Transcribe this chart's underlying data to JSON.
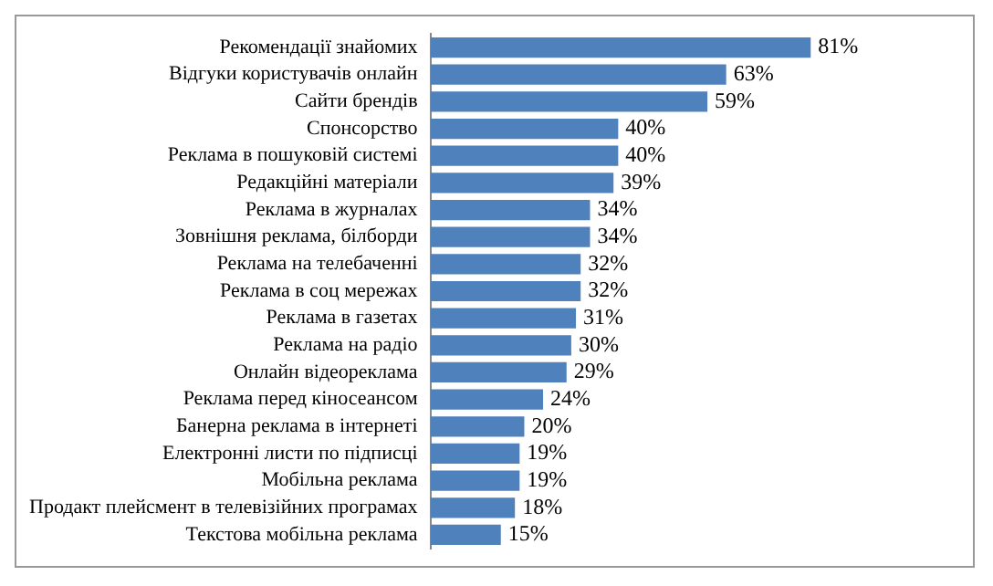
{
  "chart_data": {
    "type": "bar",
    "orientation": "horizontal",
    "categories": [
      "Рекомендації знайомих",
      "Відгуки користувачів онлайн",
      "Сайти брендів",
      "Спонсорство",
      "Реклама в пошуковій системі",
      "Редакційні матеріали",
      "Реклама в журналах",
      "Зовнішня реклама, білборди",
      "Реклама на телебаченні",
      "Реклама в соц мережах",
      "Реклама в газетах",
      "Реклама на радіо",
      "Онлайн відеореклама",
      "Реклама перед кіносеансом",
      "Банерна реклама в інтернеті",
      "Електронні листи по підписці",
      "Мобільна реклама",
      "Продакт плейсмент в телевізійних програмах",
      "Текстова мобільна реклама"
    ],
    "values": [
      81,
      63,
      59,
      40,
      40,
      39,
      34,
      34,
      32,
      32,
      31,
      30,
      29,
      24,
      20,
      19,
      19,
      18,
      15
    ],
    "value_labels": [
      "81%",
      "63%",
      "59%",
      "40%",
      "40%",
      "39%",
      "34%",
      "34%",
      "32%",
      "32%",
      "31%",
      "30%",
      "29%",
      "24%",
      "20%",
      "19%",
      "19%",
      "18%",
      "15%"
    ],
    "color": "#4f81bd",
    "grid": false,
    "legend": false,
    "tick_labels": "y"
  }
}
